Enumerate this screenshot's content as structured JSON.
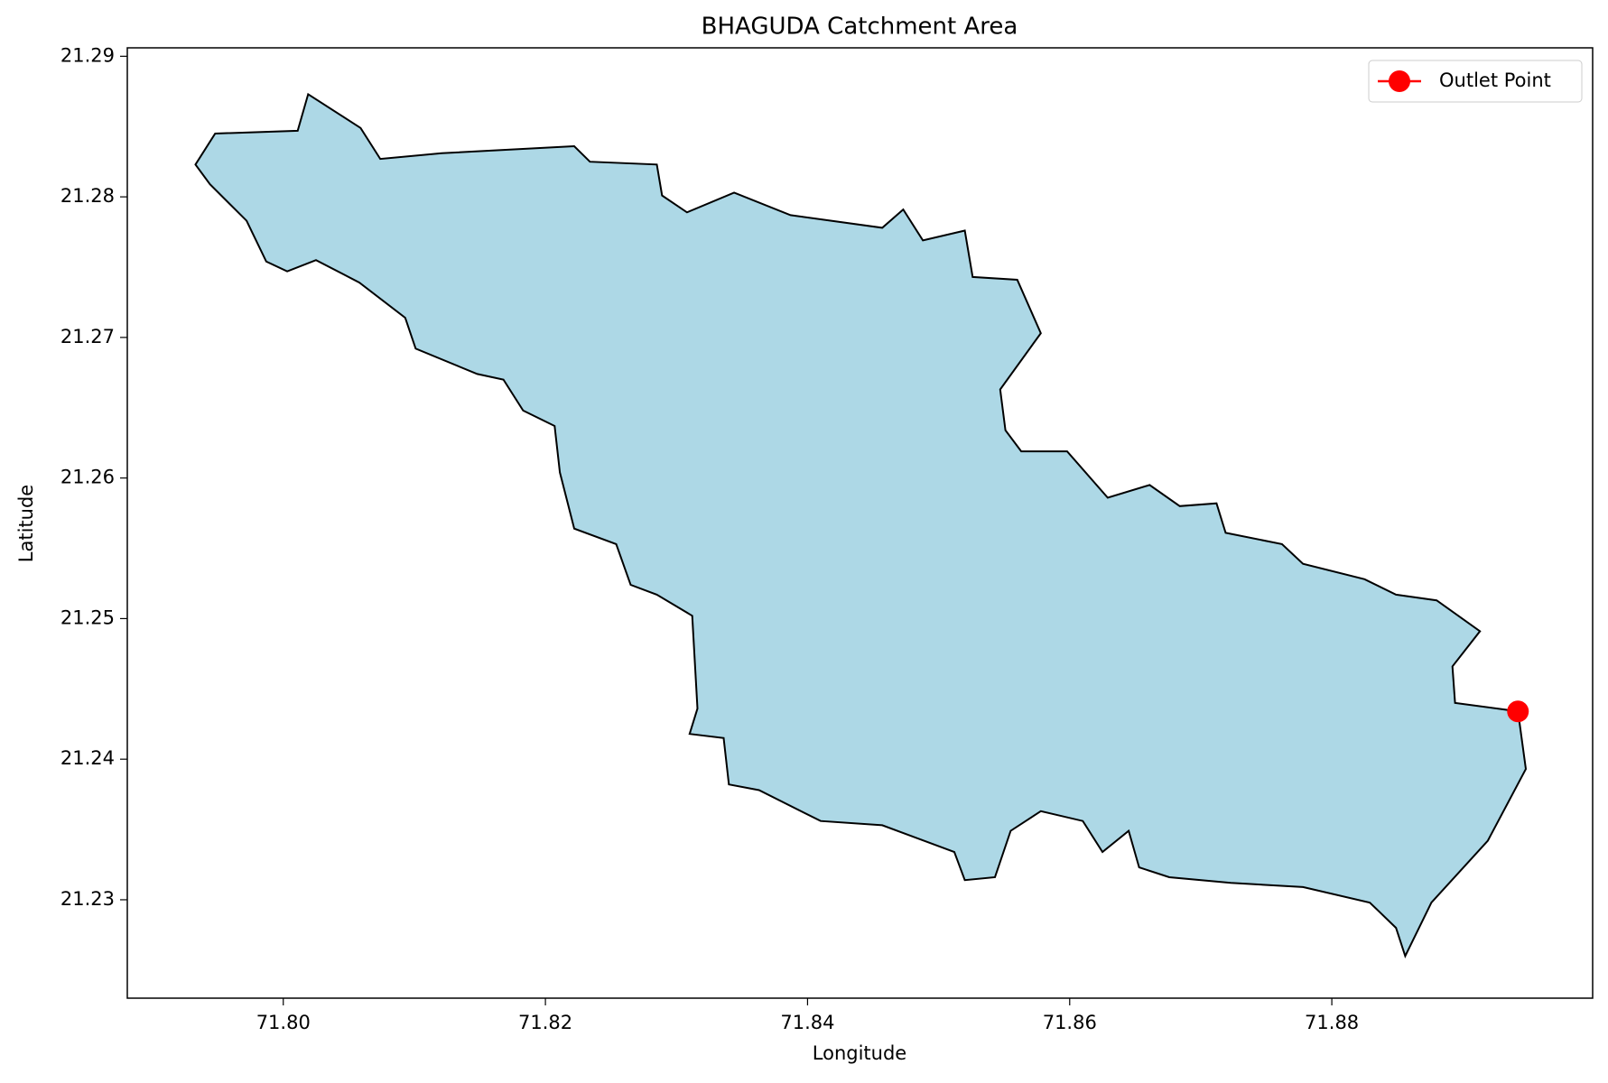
{
  "chart_data": {
    "type": "map",
    "title": "BHAGUDA Catchment Area",
    "x_label": "Longitude",
    "y_label": "Latitude",
    "xlim": [
      71.7881,
      71.8999
    ],
    "ylim": [
      21.223,
      21.2906
    ],
    "xticks": [
      {
        "value": 71.8,
        "label": "71.80"
      },
      71.82,
      71.84,
      71.86,
      71.88
    ],
    "yticks": [
      21.23,
      21.24,
      21.25,
      21.26,
      21.27,
      21.28,
      21.29
    ],
    "boundary": {
      "fill": "#add8e6",
      "edge": "#000000",
      "x": [
        71.7933,
        71.7948,
        71.8011,
        71.8019,
        71.8059,
        71.8074,
        71.8121,
        71.8222,
        71.8234,
        71.8285,
        71.8289,
        71.8308,
        71.8344,
        71.8387,
        71.8457,
        71.8473,
        71.8488,
        71.852,
        71.8526,
        71.856,
        71.8578,
        71.8547,
        71.8551,
        71.8563,
        71.8598,
        71.8629,
        71.8661,
        71.8684,
        71.8712,
        71.8719,
        71.8762,
        71.8778,
        71.8825,
        71.8849,
        71.888,
        71.8913,
        71.8892,
        71.8894,
        71.8942,
        71.8948,
        71.8919,
        71.8876,
        71.8856,
        71.8849,
        71.8829,
        71.8778,
        71.8723,
        71.8676,
        71.8653,
        71.8645,
        71.8625,
        71.861,
        71.8578,
        71.8555,
        71.8543,
        71.852,
        71.8512,
        71.8457,
        71.841,
        71.8363,
        71.834,
        71.8336,
        71.831,
        71.8316,
        71.8312,
        71.8285,
        71.8265,
        71.8254,
        71.8222,
        71.8211,
        71.8207,
        71.8183,
        71.8168,
        71.8148,
        71.8101,
        71.8093,
        71.8058,
        71.8025,
        71.8003,
        71.7987,
        71.7972,
        71.7944
      ],
      "y": [
        21.2823,
        21.2845,
        21.2847,
        21.2873,
        21.2849,
        21.2827,
        21.2831,
        21.2836,
        21.2825,
        21.2823,
        21.2801,
        21.2789,
        21.2803,
        21.2787,
        21.2778,
        21.2791,
        21.2769,
        21.2776,
        21.2743,
        21.2741,
        21.2703,
        21.2663,
        21.2634,
        21.2619,
        21.2619,
        21.2586,
        21.2595,
        21.258,
        21.2582,
        21.2561,
        21.2553,
        21.2539,
        21.2528,
        21.2517,
        21.2513,
        21.2491,
        21.2466,
        21.244,
        21.2434,
        21.2393,
        21.2342,
        21.2298,
        21.226,
        21.228,
        21.2298,
        21.2309,
        21.2312,
        21.2316,
        21.2323,
        21.2349,
        21.2334,
        21.2356,
        21.2363,
        21.2349,
        21.2316,
        21.2314,
        21.2334,
        21.2353,
        21.2356,
        21.2378,
        21.2382,
        21.2415,
        21.2418,
        21.2436,
        21.2502,
        21.2517,
        21.2524,
        21.2553,
        21.2564,
        21.2604,
        21.2637,
        21.2648,
        21.267,
        21.2674,
        21.2692,
        21.2714,
        21.2739,
        21.2755,
        21.2747,
        21.2754,
        21.2783,
        21.2809
      ]
    },
    "series": [
      {
        "name": "Outlet Point",
        "color": "#ff0000",
        "x": [
          71.8942
        ],
        "y": [
          21.2434
        ]
      }
    ],
    "legend": "upper right"
  }
}
